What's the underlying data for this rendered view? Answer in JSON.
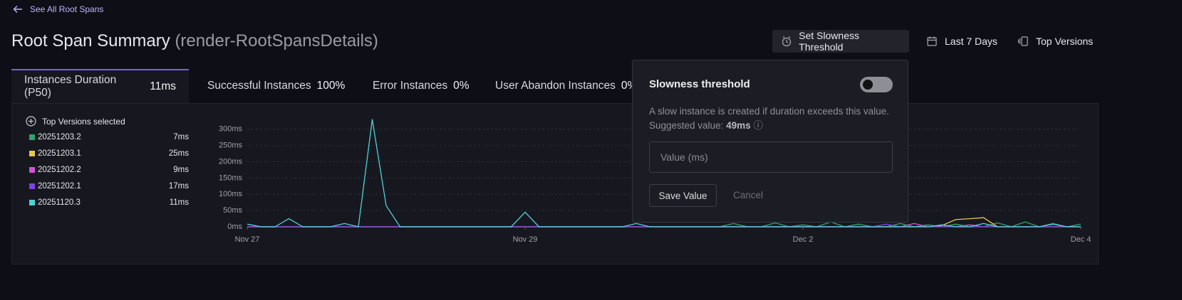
{
  "header": {
    "back_link": "See All Root Spans",
    "title": "Root Span Summary",
    "subtitle": "(render-RootSpansDetails)",
    "actions": [
      "Set Slowness Threshold",
      "Last 7 Days",
      "Top Versions"
    ]
  },
  "tabs": [
    {
      "label": "Instances Duration (P50)",
      "value": "11ms"
    },
    {
      "label": "Successful Instances",
      "value": "100%"
    },
    {
      "label": "Error Instances",
      "value": "0%"
    },
    {
      "label": "User Abandon Instances",
      "value": "0%"
    }
  ],
  "legend_title": "Top Versions selected",
  "popover": {
    "title": "Slowness threshold",
    "description": "A slow instance is created if duration exceeds this value.",
    "suggested_label": "Suggested value:",
    "suggested_value": "49ms",
    "placeholder": "Value (ms)",
    "save": "Save Value",
    "cancel": "Cancel"
  },
  "chart_data": {
    "type": "line",
    "categories": [
      "Nov 27",
      null,
      null,
      null,
      null,
      null,
      null,
      null,
      null,
      null,
      null,
      null,
      null,
      null,
      null,
      null,
      null,
      null,
      null,
      null,
      "Nov 29",
      null,
      null,
      null,
      null,
      null,
      null,
      null,
      null,
      null,
      null,
      null,
      null,
      null,
      null,
      null,
      null,
      null,
      null,
      null,
      "Dec 2",
      null,
      null,
      null,
      null,
      null,
      null,
      null,
      null,
      null,
      null,
      null,
      null,
      null,
      null,
      null,
      null,
      null,
      null,
      null,
      "Dec 4"
    ],
    "series": [
      {
        "name": "20251203.2",
        "p50": "7ms",
        "color": "#2fa36b",
        "values": [
          0,
          0,
          0,
          0,
          0,
          0,
          0,
          0,
          0,
          0,
          0,
          0,
          0,
          0,
          0,
          0,
          0,
          0,
          0,
          0,
          0,
          0,
          0,
          0,
          0,
          0,
          0,
          0,
          0,
          0,
          0,
          0,
          0,
          0,
          0,
          10,
          0,
          0,
          12,
          0,
          6,
          0,
          15,
          0,
          8,
          0,
          0,
          10,
          0,
          6,
          0,
          8,
          0,
          0,
          12,
          0,
          15,
          0,
          10,
          0,
          8
        ]
      },
      {
        "name": "20251203.1",
        "p50": "25ms",
        "color": "#e8c547",
        "values": [
          0,
          0,
          0,
          0,
          0,
          0,
          0,
          0,
          0,
          0,
          0,
          0,
          0,
          0,
          0,
          0,
          0,
          0,
          0,
          0,
          0,
          0,
          0,
          0,
          0,
          0,
          0,
          0,
          0,
          0,
          0,
          0,
          0,
          0,
          0,
          0,
          0,
          0,
          0,
          0,
          0,
          0,
          0,
          0,
          0,
          0,
          0,
          0,
          0,
          0,
          4,
          22,
          25,
          28,
          0,
          0,
          0,
          0,
          0,
          0,
          0
        ]
      },
      {
        "name": "20251202.2",
        "p50": "9ms",
        "color": "#d64fd6",
        "values": [
          0,
          0,
          0,
          0,
          0,
          0,
          0,
          0,
          0,
          0,
          0,
          0,
          0,
          0,
          0,
          0,
          0,
          0,
          0,
          0,
          0,
          0,
          0,
          0,
          0,
          0,
          0,
          0,
          0,
          0,
          0,
          0,
          0,
          0,
          0,
          0,
          0,
          0,
          0,
          0,
          0,
          0,
          0,
          0,
          0,
          0,
          0,
          0,
          10,
          0,
          0,
          0,
          6,
          0,
          0,
          0,
          0,
          0,
          0,
          0,
          0
        ]
      },
      {
        "name": "20251202.1",
        "p50": "17ms",
        "color": "#7b45e0",
        "values": [
          0,
          0,
          0,
          0,
          0,
          0,
          0,
          0,
          0,
          0,
          0,
          0,
          0,
          0,
          0,
          0,
          0,
          0,
          0,
          0,
          0,
          0,
          0,
          0,
          0,
          0,
          0,
          0,
          0,
          0,
          0,
          0,
          0,
          0,
          0,
          0,
          0,
          0,
          0,
          0,
          0,
          0,
          0,
          0,
          0,
          0,
          8,
          0,
          0,
          0,
          0,
          0,
          0,
          0,
          0,
          0,
          0,
          0,
          0,
          0,
          0
        ]
      },
      {
        "name": "20251120.3",
        "p50": "11ms",
        "color": "#4fd1dc",
        "values": [
          8,
          0,
          0,
          25,
          0,
          0,
          0,
          10,
          0,
          330,
          65,
          0,
          0,
          0,
          0,
          0,
          0,
          0,
          0,
          0,
          45,
          0,
          0,
          0,
          0,
          0,
          0,
          0,
          10,
          0,
          0,
          0,
          0,
          0,
          0,
          0,
          0,
          0,
          0,
          0,
          0,
          0,
          0,
          0,
          0,
          0,
          0,
          0,
          0,
          0,
          6,
          0,
          0,
          10,
          0,
          0,
          0,
          0,
          8,
          0,
          0
        ]
      }
    ],
    "ylim": [
      0,
      330
    ],
    "yticks": [
      {
        "value": 0,
        "label": "0ms"
      },
      {
        "value": 50,
        "label": "50ms"
      },
      {
        "value": 100,
        "label": "100ms"
      },
      {
        "value": 150,
        "label": "150ms"
      },
      {
        "value": 200,
        "label": "200ms"
      },
      {
        "value": 250,
        "label": "250ms"
      },
      {
        "value": 300,
        "label": "300ms"
      }
    ],
    "grid": true
  }
}
